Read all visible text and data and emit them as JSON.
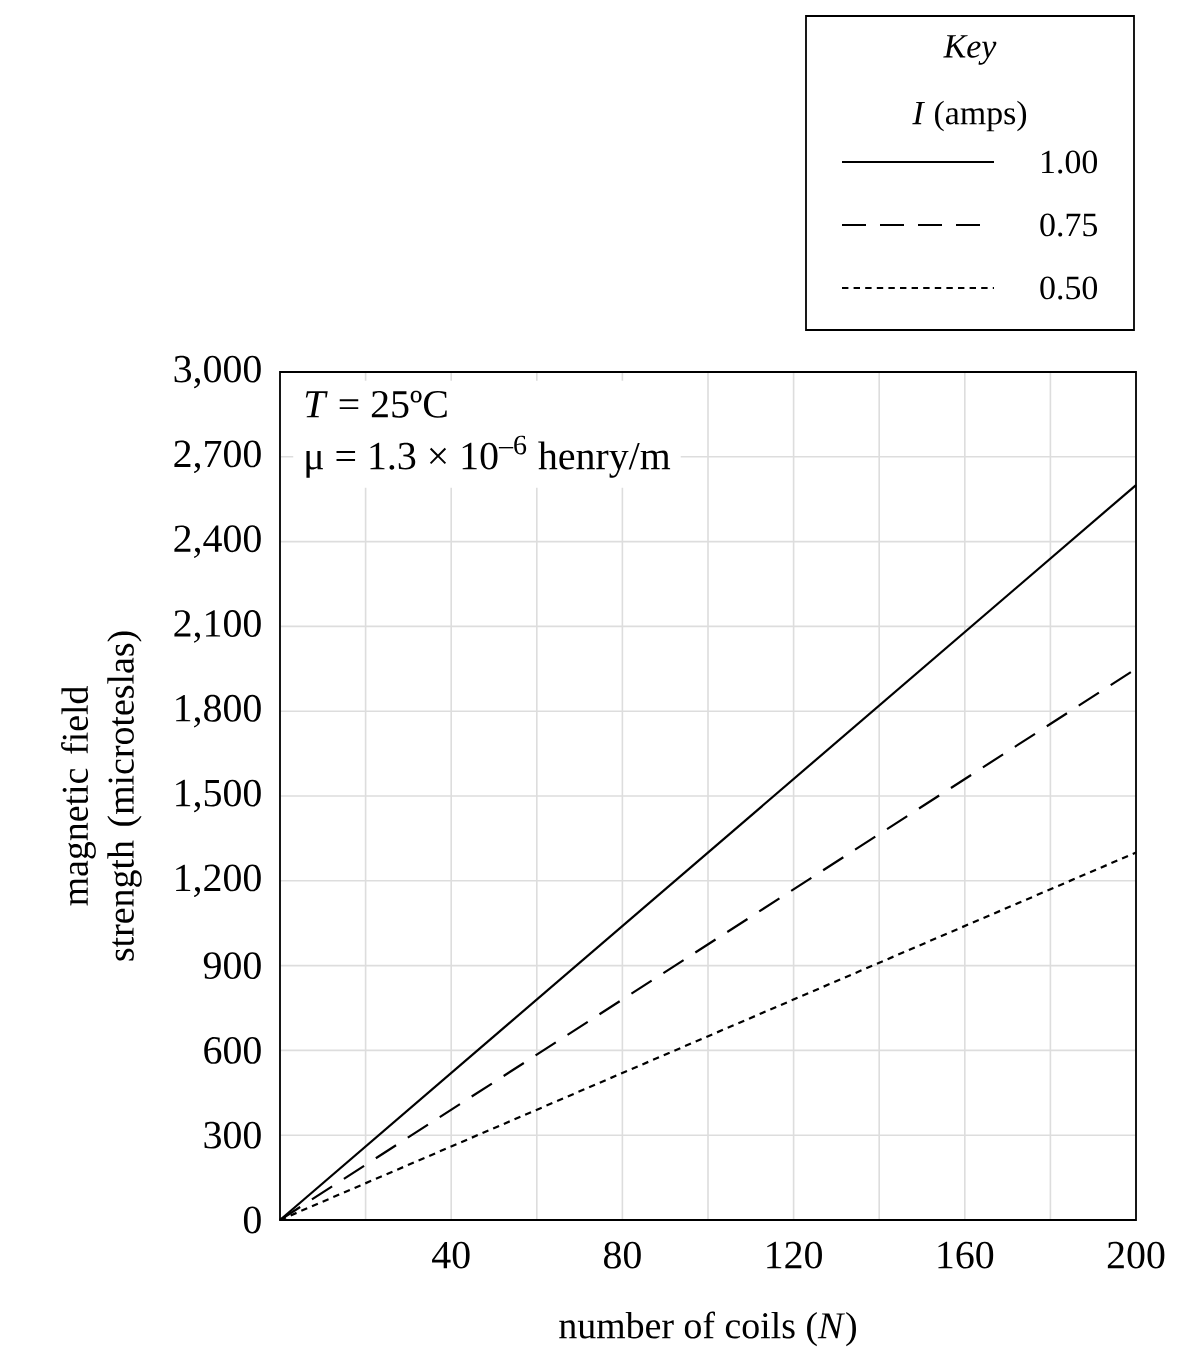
{
  "chart_data": {
    "type": "line",
    "xlabel": "number of coils (*N*)",
    "ylabel": "magnetic field strength (microteslas)",
    "legend_title": "Key",
    "annotations": [
      "*T* = 25ºC",
      "μ = 1.3 × 10$^{–6}$ henry/m",
      "*I* (amps)"
    ],
    "x": [
      0,
      200
    ],
    "series": [
      {
        "name": "1.00",
        "color": "#000000",
        "line_style": "solid",
        "values": [
          0,
          2600
        ]
      },
      {
        "name": "0.75",
        "color": "#000000",
        "line_style": "dashed",
        "values": [
          0,
          1950
        ]
      },
      {
        "name": "0.50",
        "color": "#000000",
        "line_style": "dotted",
        "values": [
          0,
          1300
        ]
      }
    ],
    "xlim": [
      0,
      200
    ],
    "xticks": [
      {
        "value": 0,
        "label": null
      },
      {
        "value": 20,
        "label": null
      },
      40,
      {
        "value": 60,
        "label": null
      },
      80,
      {
        "value": 100,
        "label": null
      },
      120,
      {
        "value": 140,
        "label": null
      },
      160,
      {
        "value": 180,
        "label": null
      },
      200
    ],
    "ylim": [
      0,
      3000
    ],
    "yticks": [
      0,
      300,
      600,
      900,
      {
        "value": 1200,
        "label": "1,200"
      },
      {
        "value": 1500,
        "label": "1,500"
      },
      {
        "value": 1800,
        "label": "1,800"
      },
      {
        "value": 2100,
        "label": "2,100"
      },
      {
        "value": 2400,
        "label": "2,400"
      },
      {
        "value": 2700,
        "label": "2,700"
      },
      {
        "value": 3000,
        "label": "3,000"
      }
    ],
    "grid": true,
    "legend": "top right",
    "marker": "none"
  }
}
